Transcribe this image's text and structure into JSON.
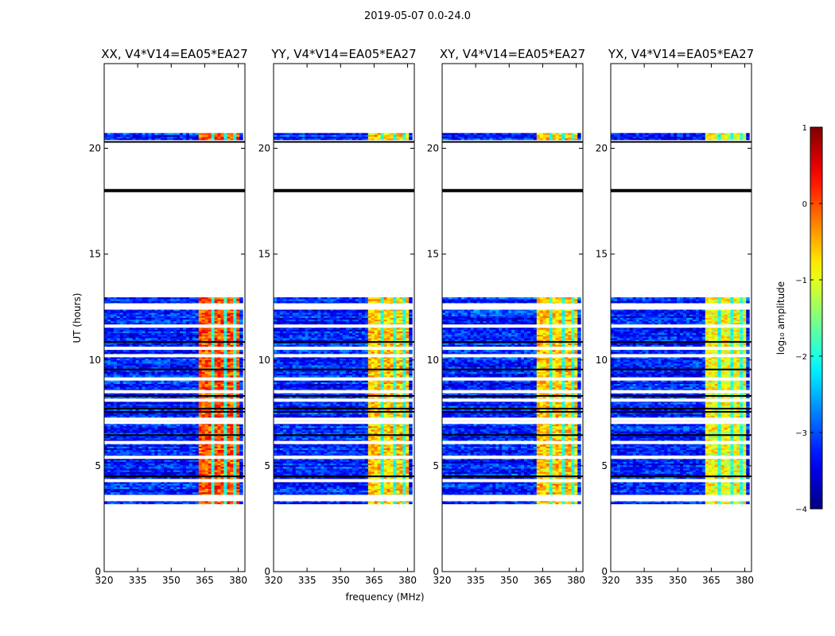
{
  "chart_data": {
    "type": "heatmap",
    "title": "2019-05-07 0.0-24.0",
    "panels": [
      {
        "title": "XX, V4*V14=EA05*EA27",
        "polarization": "XX"
      },
      {
        "title": "YY, V4*V14=EA05*EA27",
        "polarization": "YY"
      },
      {
        "title": "XY, V4*V14=EA05*EA27",
        "polarization": "XY"
      },
      {
        "title": "YX, V4*V14=EA05*EA27",
        "polarization": "YX"
      }
    ],
    "xlabel": "frequency (MHz)",
    "ylabel": "UT (hours)",
    "xlim": [
      320,
      383
    ],
    "ylim": [
      0,
      24
    ],
    "xticks": [
      320,
      335,
      350,
      365,
      380
    ],
    "yticks": [
      0,
      5,
      10,
      15,
      20
    ],
    "colorbar": {
      "label": "log₁₀ amplitude",
      "range": [
        -4,
        1
      ],
      "ticks": [
        1,
        0,
        -1,
        -2,
        -3,
        -4
      ],
      "colormap": "jet"
    },
    "data_blocks": [
      {
        "ut_start": 3.2,
        "ut_end": 12.95
      },
      {
        "ut_start": 20.4,
        "ut_end": 20.7
      }
    ],
    "flagged_ut_hours": [
      3.4,
      3.55,
      4.3,
      5.4,
      6.1,
      7.05,
      7.2,
      8.1,
      8.5,
      9.1,
      10.2,
      10.55,
      11.6,
      12.45,
      12.6
    ],
    "black_ut_hours": [
      4.5,
      6.45,
      7.55,
      7.7,
      8.3,
      9.55,
      10.85,
      20.3,
      18.0
    ],
    "strong_band_mhz": [
      362,
      380
    ],
    "strong_band_log_amp": {
      "XX": 0.0,
      "YY": -0.6,
      "XY": -0.6,
      "YX": -0.9
    },
    "background_log_amp": -3.2,
    "vertical_gaps_mhz": [
      368,
      373,
      378
    ]
  }
}
